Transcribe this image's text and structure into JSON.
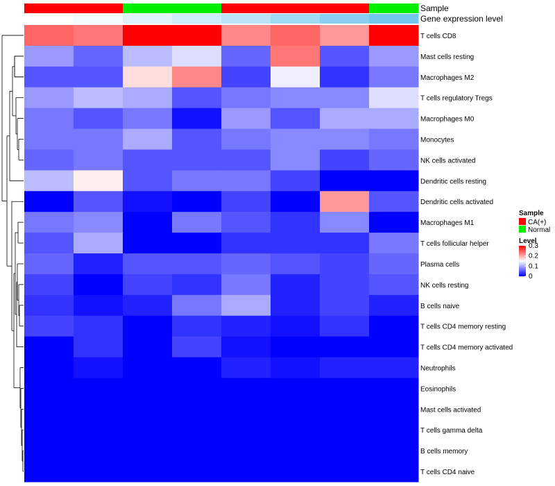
{
  "chart_data": {
    "type": "heatmap",
    "annotation_tracks": [
      "Sample",
      "Gene expression level"
    ],
    "sample_groups": [
      "CA(+)",
      "CA(+)",
      "Normal",
      "Normal",
      "CA(+)",
      "CA(+)",
      "CA(+)",
      "Normal"
    ],
    "gene_expression_level": [
      0.0,
      0.08,
      0.22,
      0.36,
      0.5,
      0.68,
      0.85,
      1.0
    ],
    "rows": [
      "T cells CD8",
      "Mast cells resting",
      "Macrophages M2",
      "T cells regulatory  Tregs",
      "Macrophages M0",
      "Monocytes",
      "NK cells activated",
      "Dendritic cells resting",
      "Dendritic cells activated",
      "Macrophages M1",
      "T cells follicular helper",
      "Plasma cells",
      "NK cells resting",
      "B cells naive",
      "T cells CD4 memory resting",
      "T cells CD4 memory activated",
      "Neutrophils",
      "Eosinophils",
      "Mast cells activated",
      "T cells gamma delta",
      "B cells memory",
      "T cells CD4 naive"
    ],
    "values": [
      [
        0.24,
        0.23,
        0.3,
        0.3,
        0.22,
        0.24,
        0.21,
        0.3
      ],
      [
        0.09,
        0.06,
        0.11,
        0.13,
        0.06,
        0.23,
        0.05,
        0.09
      ],
      [
        0.05,
        0.05,
        0.17,
        0.22,
        0.04,
        0.14,
        0.03,
        0.07
      ],
      [
        0.09,
        0.11,
        0.1,
        0.05,
        0.07,
        0.08,
        0.08,
        0.13
      ],
      [
        0.07,
        0.05,
        0.07,
        0.01,
        0.09,
        0.05,
        0.1,
        0.1
      ],
      [
        0.07,
        0.07,
        0.1,
        0.05,
        0.07,
        0.08,
        0.08,
        0.07
      ],
      [
        0.06,
        0.07,
        0.05,
        0.05,
        0.05,
        0.08,
        0.04,
        0.06
      ],
      [
        0.11,
        0.16,
        0.05,
        0.07,
        0.07,
        0.04,
        0.0,
        0.0
      ],
      [
        0.0,
        0.05,
        0.01,
        0.0,
        0.04,
        0.0,
        0.21,
        0.05
      ],
      [
        0.07,
        0.08,
        0.0,
        0.07,
        0.05,
        0.03,
        0.08,
        0.0
      ],
      [
        0.05,
        0.1,
        0.0,
        0.0,
        0.03,
        0.03,
        0.03,
        0.07
      ],
      [
        0.06,
        0.02,
        0.05,
        0.05,
        0.06,
        0.05,
        0.04,
        0.06
      ],
      [
        0.04,
        0.0,
        0.04,
        0.03,
        0.07,
        0.02,
        0.04,
        0.05
      ],
      [
        0.03,
        0.01,
        0.02,
        0.07,
        0.1,
        0.02,
        0.04,
        0.02
      ],
      [
        0.04,
        0.03,
        0.0,
        0.03,
        0.02,
        0.01,
        0.03,
        0.0
      ],
      [
        0.0,
        0.03,
        0.0,
        0.04,
        0.01,
        0.0,
        0.0,
        0.0
      ],
      [
        0.0,
        0.01,
        0.0,
        0.0,
        0.02,
        0.01,
        0.02,
        0.02
      ],
      [
        0.0,
        0.0,
        0.0,
        0.0,
        0.0,
        0.0,
        0.0,
        0.0
      ],
      [
        0.0,
        0.0,
        0.0,
        0.0,
        0.0,
        0.0,
        0.0,
        0.0
      ],
      [
        0.0,
        0.0,
        0.0,
        0.0,
        0.0,
        0.0,
        0.0,
        0.0
      ],
      [
        0.0,
        0.0,
        0.0,
        0.0,
        0.0,
        0.0,
        0.0,
        0.0
      ],
      [
        0.0,
        0.0,
        0.0,
        0.0,
        0.0,
        0.0,
        0.0,
        0.0
      ]
    ],
    "color_scale": {
      "min": 0,
      "mid": 0.15,
      "max": 0.3,
      "low": "#0000ff",
      "middle": "#ffffff",
      "high": "#ff0000"
    },
    "legend_sample": {
      "title": "Sample",
      "items": [
        {
          "label": "CA(+)",
          "color": "#ff0000"
        },
        {
          "label": "Normal",
          "color": "#00ee00"
        }
      ]
    },
    "legend_level": {
      "title": "Level",
      "ticks": [
        "0.3",
        "0.2",
        "0.1",
        "0"
      ]
    },
    "gene_expression_colors": {
      "low": "#ffffff",
      "high": "#74c7ec"
    },
    "legend_placement": "right",
    "dendrogram": "rows, left side"
  }
}
